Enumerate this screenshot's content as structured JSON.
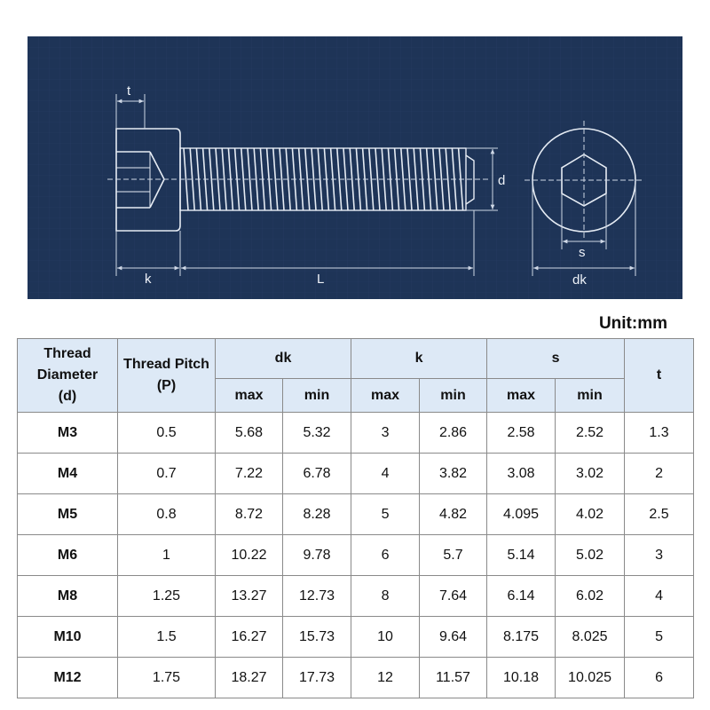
{
  "drawing": {
    "labels": {
      "t": "t",
      "k": "k",
      "L": "L",
      "d": "d",
      "s": "s",
      "dk": "dk"
    }
  },
  "unit_label": "Unit:mm",
  "table": {
    "headers": {
      "thread_diameter": [
        "Thread",
        "Diameter",
        "(d)"
      ],
      "thread_pitch": [
        "Thread Pitch",
        "(P)"
      ],
      "dk": "dk",
      "k": "k",
      "s": "s",
      "t": "t",
      "max": "max",
      "min": "min"
    },
    "rows": [
      [
        "M3",
        "0.5",
        "5.68",
        "5.32",
        "3",
        "2.86",
        "2.58",
        "2.52",
        "1.3"
      ],
      [
        "M4",
        "0.7",
        "7.22",
        "6.78",
        "4",
        "3.82",
        "3.08",
        "3.02",
        "2"
      ],
      [
        "M5",
        "0.8",
        "8.72",
        "8.28",
        "5",
        "4.82",
        "4.095",
        "4.02",
        "2.5"
      ],
      [
        "M6",
        "1",
        "10.22",
        "9.78",
        "6",
        "5.7",
        "5.14",
        "5.02",
        "3"
      ],
      [
        "M8",
        "1.25",
        "13.27",
        "12.73",
        "8",
        "7.64",
        "6.14",
        "6.02",
        "4"
      ],
      [
        "M10",
        "1.5",
        "16.27",
        "15.73",
        "10",
        "9.64",
        "8.175",
        "8.025",
        "5"
      ],
      [
        "M12",
        "1.75",
        "18.27",
        "17.73",
        "12",
        "11.57",
        "10.18",
        "10.025",
        "6"
      ]
    ]
  },
  "colors": {
    "drawing_background": "#1e3457",
    "header_background": "#dde9f6"
  }
}
